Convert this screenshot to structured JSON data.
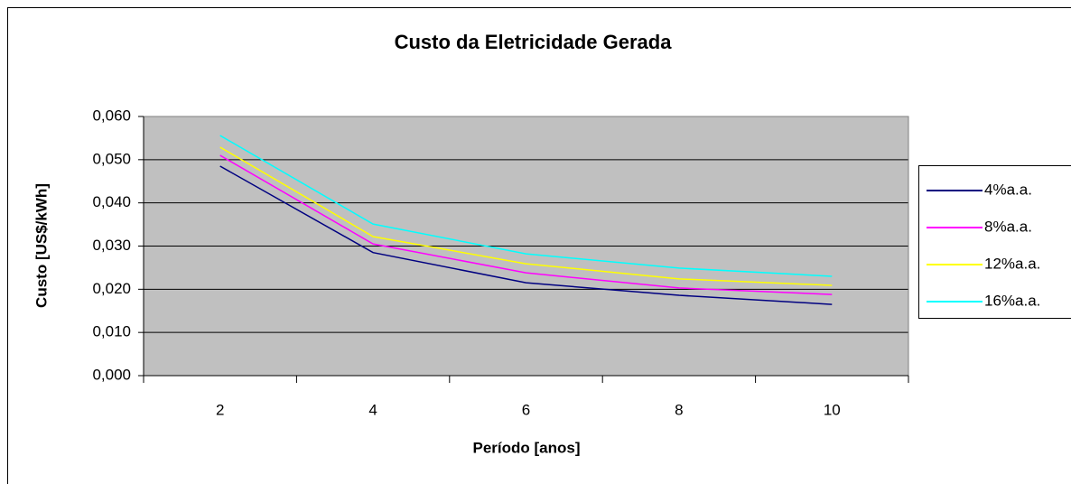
{
  "chart_data": {
    "type": "line",
    "title": "Custo da Eletricidade Gerada",
    "x_label": "Período [anos]",
    "y_label": "Custo [US$/kWh]",
    "categories": [
      "2",
      "4",
      "6",
      "8",
      "10"
    ],
    "series": [
      {
        "name": "4%a.a.",
        "color": "#000080",
        "values": [
          0.0485,
          0.0285,
          0.0215,
          0.0186,
          0.0165
        ]
      },
      {
        "name": "8%a.a.",
        "color": "#ff00ff",
        "values": [
          0.051,
          0.0305,
          0.0238,
          0.0203,
          0.0188
        ]
      },
      {
        "name": "12%a.a.",
        "color": "#ffff00",
        "values": [
          0.0529,
          0.0322,
          0.0259,
          0.0224,
          0.0209
        ]
      },
      {
        "name": "16%a.a.",
        "color": "#00ffff",
        "values": [
          0.0556,
          0.0351,
          0.0282,
          0.0249,
          0.023
        ]
      }
    ],
    "ylim": [
      0,
      0.06
    ],
    "yticks": [
      {
        "value": 0,
        "label": "0,000"
      },
      {
        "value": 0.01,
        "label": "0,010"
      },
      {
        "value": 0.02,
        "label": "0,020"
      },
      {
        "value": 0.03,
        "label": "0,030"
      },
      {
        "value": 0.04,
        "label": "0,040"
      },
      {
        "value": 0.05,
        "label": "0,050"
      },
      {
        "value": 0.06,
        "label": "0,060"
      }
    ],
    "grid": true,
    "legend": "right"
  }
}
